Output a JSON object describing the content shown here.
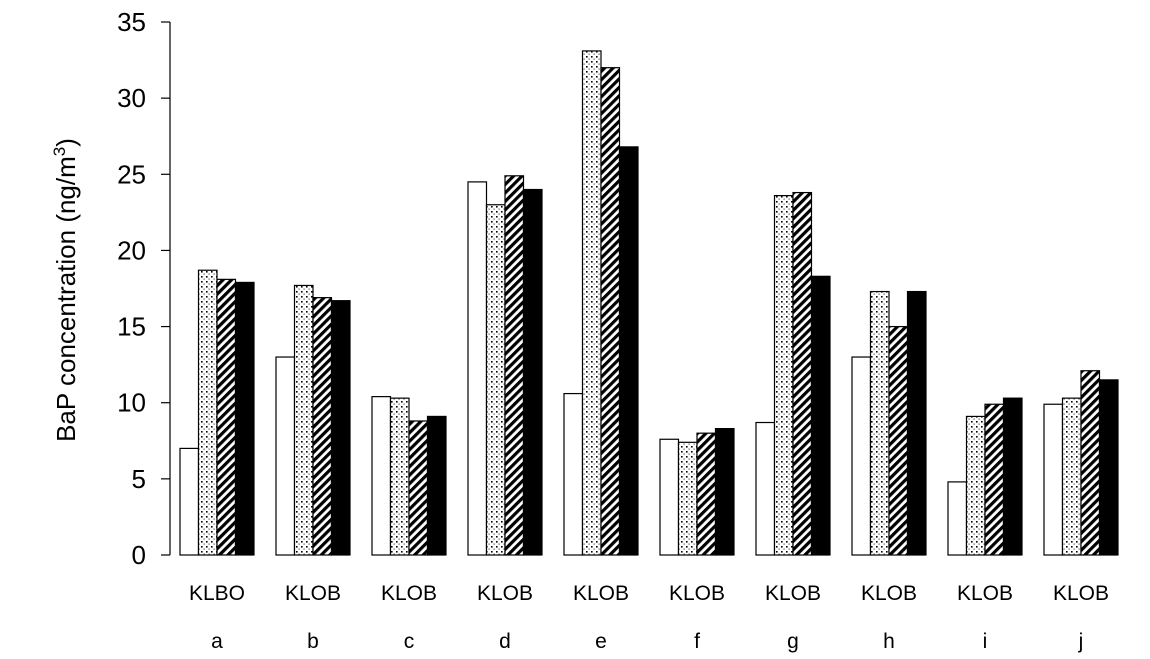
{
  "chart_data": {
    "type": "bar",
    "title": "",
    "xlabel": "",
    "ylabel": "BaP concentration (ng/m",
    "ylabel_superscript": "3",
    "ylabel_suffix": ")",
    "ylim": [
      0,
      35
    ],
    "yticks": [
      0,
      5,
      10,
      15,
      20,
      25,
      30,
      35
    ],
    "grid": false,
    "legend": "none",
    "categories": [
      "a",
      "b",
      "c",
      "d",
      "e",
      "f",
      "g",
      "h",
      "i",
      "j"
    ],
    "bar_letter_labels": [
      "KLBO",
      "KLOB",
      "KLOB",
      "KLOB",
      "KLOB",
      "KLOB",
      "KLOB",
      "KLOB",
      "KLOB",
      "KLOB"
    ],
    "series": [
      {
        "pattern": "white",
        "values": [
          7.0,
          13.0,
          10.4,
          24.5,
          10.6,
          7.6,
          8.7,
          13.0,
          4.8,
          9.9
        ]
      },
      {
        "pattern": "dotted",
        "values": [
          18.7,
          17.7,
          10.3,
          23.0,
          33.1,
          7.4,
          23.6,
          17.3,
          9.1,
          10.3
        ]
      },
      {
        "pattern": "hatched",
        "values": [
          18.1,
          16.9,
          8.8,
          24.9,
          32.0,
          8.0,
          23.8,
          15.0,
          9.9,
          12.1
        ]
      },
      {
        "pattern": "black",
        "values": [
          17.9,
          16.7,
          9.1,
          24.0,
          26.8,
          8.3,
          18.3,
          17.3,
          10.3,
          11.5
        ]
      }
    ],
    "colors": {
      "white": "#ffffff",
      "black": "#000000",
      "stroke": "#000000"
    }
  }
}
